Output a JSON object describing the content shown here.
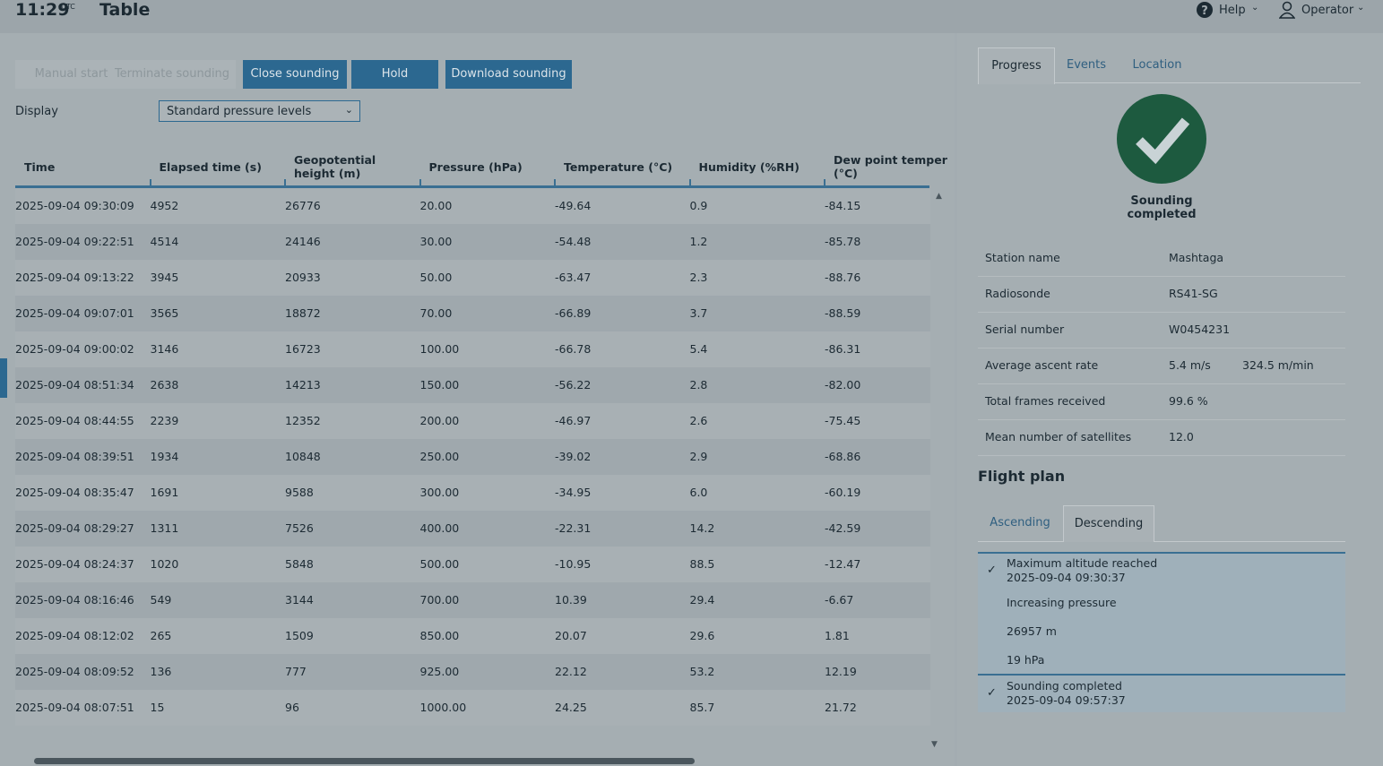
{
  "header": {
    "time": "11:29",
    "timezone": "UTC",
    "title": "Table",
    "help": "Help",
    "user": "Operator"
  },
  "buttons": [
    "Manual start",
    "Terminate sounding",
    "Close sounding",
    "Hold",
    "Download sounding"
  ],
  "display": {
    "label": "Display",
    "value": "Standard pressure levels"
  },
  "table": {
    "columns": [
      "Time",
      "Elapsed time (s)",
      "Geopotential height (m)",
      "Pressure (hPa)",
      "Temperature (°C)",
      "Humidity (%RH)",
      "Dew point temper (°C)"
    ],
    "rows": [
      [
        "2025-09-04 09:30:09",
        "4952",
        "26776",
        "20.00",
        "-49.64",
        "0.9",
        "-84.15"
      ],
      [
        "2025-09-04 09:22:51",
        "4514",
        "24146",
        "30.00",
        "-54.48",
        "1.2",
        "-85.78"
      ],
      [
        "2025-09-04 09:13:22",
        "3945",
        "20933",
        "50.00",
        "-63.47",
        "2.3",
        "-88.76"
      ],
      [
        "2025-09-04 09:07:01",
        "3565",
        "18872",
        "70.00",
        "-66.89",
        "3.7",
        "-88.59"
      ],
      [
        "2025-09-04 09:00:02",
        "3146",
        "16723",
        "100.00",
        "-66.78",
        "5.4",
        "-86.31"
      ],
      [
        "2025-09-04 08:51:34",
        "2638",
        "14213",
        "150.00",
        "-56.22",
        "2.8",
        "-82.00"
      ],
      [
        "2025-09-04 08:44:55",
        "2239",
        "12352",
        "200.00",
        "-46.97",
        "2.6",
        "-75.45"
      ],
      [
        "2025-09-04 08:39:51",
        "1934",
        "10848",
        "250.00",
        "-39.02",
        "2.9",
        "-68.86"
      ],
      [
        "2025-09-04 08:35:47",
        "1691",
        "9588",
        "300.00",
        "-34.95",
        "6.0",
        "-60.19"
      ],
      [
        "2025-09-04 08:29:27",
        "1311",
        "7526",
        "400.00",
        "-22.31",
        "14.2",
        "-42.59"
      ],
      [
        "2025-09-04 08:24:37",
        "1020",
        "5848",
        "500.00",
        "-10.95",
        "88.5",
        "-12.47"
      ],
      [
        "2025-09-04 08:16:46",
        "549",
        "3144",
        "700.00",
        "10.39",
        "29.4",
        "-6.67"
      ],
      [
        "2025-09-04 08:12:02",
        "265",
        "1509",
        "850.00",
        "20.07",
        "29.6",
        "1.81"
      ],
      [
        "2025-09-04 08:09:52",
        "136",
        "777",
        "925.00",
        "22.12",
        "53.2",
        "12.19"
      ],
      [
        "2025-09-04 08:07:51",
        "15",
        "96",
        "1000.00",
        "24.25",
        "85.7",
        "21.72"
      ]
    ]
  },
  "side": {
    "tabs": [
      "Progress",
      "Events",
      "Location"
    ],
    "status": "Sounding completed",
    "info": [
      [
        "Station name",
        "Mashtaga"
      ],
      [
        "Radiosonde",
        "RS41-SG"
      ],
      [
        "Serial number",
        "W0454231"
      ],
      [
        "Average ascent rate",
        "5.4 m/s",
        "324.5 m/min"
      ],
      [
        "Total frames received",
        "99.6 %"
      ],
      [
        "Mean number of satellites",
        "12.0"
      ]
    ],
    "flight_plan": {
      "title": "Flight plan",
      "tabs": [
        "Ascending",
        "Descending"
      ],
      "items": [
        {
          "title": "Maximum altitude reached",
          "time": "2025-09-04 09:30:37"
        },
        {
          "title": "Increasing pressure"
        },
        {
          "title": "26957 m"
        },
        {
          "title": "19 hPa"
        },
        {
          "title": "Sounding completed",
          "time": "2025-09-04 09:57:37"
        }
      ]
    }
  }
}
